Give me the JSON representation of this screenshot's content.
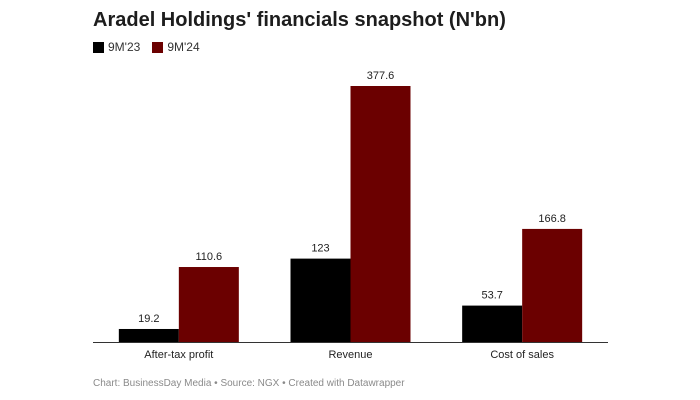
{
  "chart_data": {
    "type": "bar",
    "title": "Aradel Holdings' financials snapshot (N'bn)",
    "categories": [
      "After-tax profit",
      "Revenue",
      "Cost of sales"
    ],
    "series": [
      {
        "name": "9M'23",
        "color": "#000000",
        "values": [
          19.2,
          123,
          53.7
        ]
      },
      {
        "name": "9M'24",
        "color": "#6b0000",
        "values": [
          110.6,
          377.6,
          166.8
        ]
      }
    ],
    "value_labels": [
      [
        "19.2",
        "123",
        "53.7"
      ],
      [
        "110.6",
        "377.6",
        "166.8"
      ]
    ],
    "ylim": [
      0,
      377.6
    ],
    "grid": false,
    "legend_position": "top-left"
  },
  "footer": "Chart: BusinessDay Media • Source: NGX • Created with Datawrapper"
}
